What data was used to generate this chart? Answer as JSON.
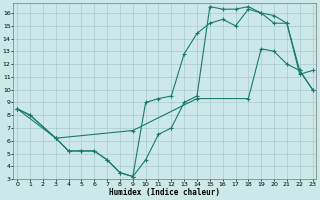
{
  "xlabel": "Humidex (Indice chaleur)",
  "bg_color": "#cce8e8",
  "grid_color": "#aacccc",
  "line_color": "#1a7a6e",
  "line1_x": [
    0,
    1,
    3,
    4,
    5,
    6,
    7,
    8,
    9,
    10,
    11,
    12,
    13,
    14,
    15,
    16,
    17,
    18,
    19,
    20,
    21,
    22,
    23
  ],
  "line1_y": [
    8.5,
    8.0,
    6.2,
    5.2,
    5.2,
    5.2,
    4.5,
    3.5,
    3.2,
    9.0,
    9.3,
    9.5,
    12.8,
    14.4,
    15.2,
    15.5,
    15.0,
    16.3,
    16.0,
    15.8,
    15.2,
    11.2,
    11.5
  ],
  "line2_x": [
    0,
    1,
    3,
    4,
    5,
    6,
    7,
    8,
    9,
    10,
    11,
    12,
    13,
    14,
    15,
    16,
    17,
    18,
    19,
    20,
    21,
    22,
    23
  ],
  "line2_y": [
    8.5,
    8.0,
    6.2,
    5.2,
    5.2,
    5.2,
    4.5,
    3.5,
    3.2,
    4.5,
    6.5,
    7.0,
    9.0,
    9.5,
    16.5,
    16.3,
    16.3,
    16.5,
    16.0,
    15.2,
    15.2,
    11.5,
    10.0
  ],
  "line3_x": [
    0,
    3,
    9,
    14,
    18,
    19,
    20,
    21,
    22,
    23
  ],
  "line3_y": [
    8.5,
    6.2,
    6.8,
    9.3,
    9.3,
    13.2,
    13.0,
    12.0,
    11.5,
    10.0
  ],
  "xlim": [
    -0.3,
    23.3
  ],
  "ylim": [
    3,
    16.8
  ],
  "yticks": [
    3,
    4,
    5,
    6,
    7,
    8,
    9,
    10,
    11,
    12,
    13,
    14,
    15,
    16
  ],
  "xticks": [
    0,
    1,
    2,
    3,
    4,
    5,
    6,
    7,
    8,
    9,
    10,
    11,
    12,
    13,
    14,
    15,
    16,
    17,
    18,
    19,
    20,
    21,
    22,
    23
  ]
}
